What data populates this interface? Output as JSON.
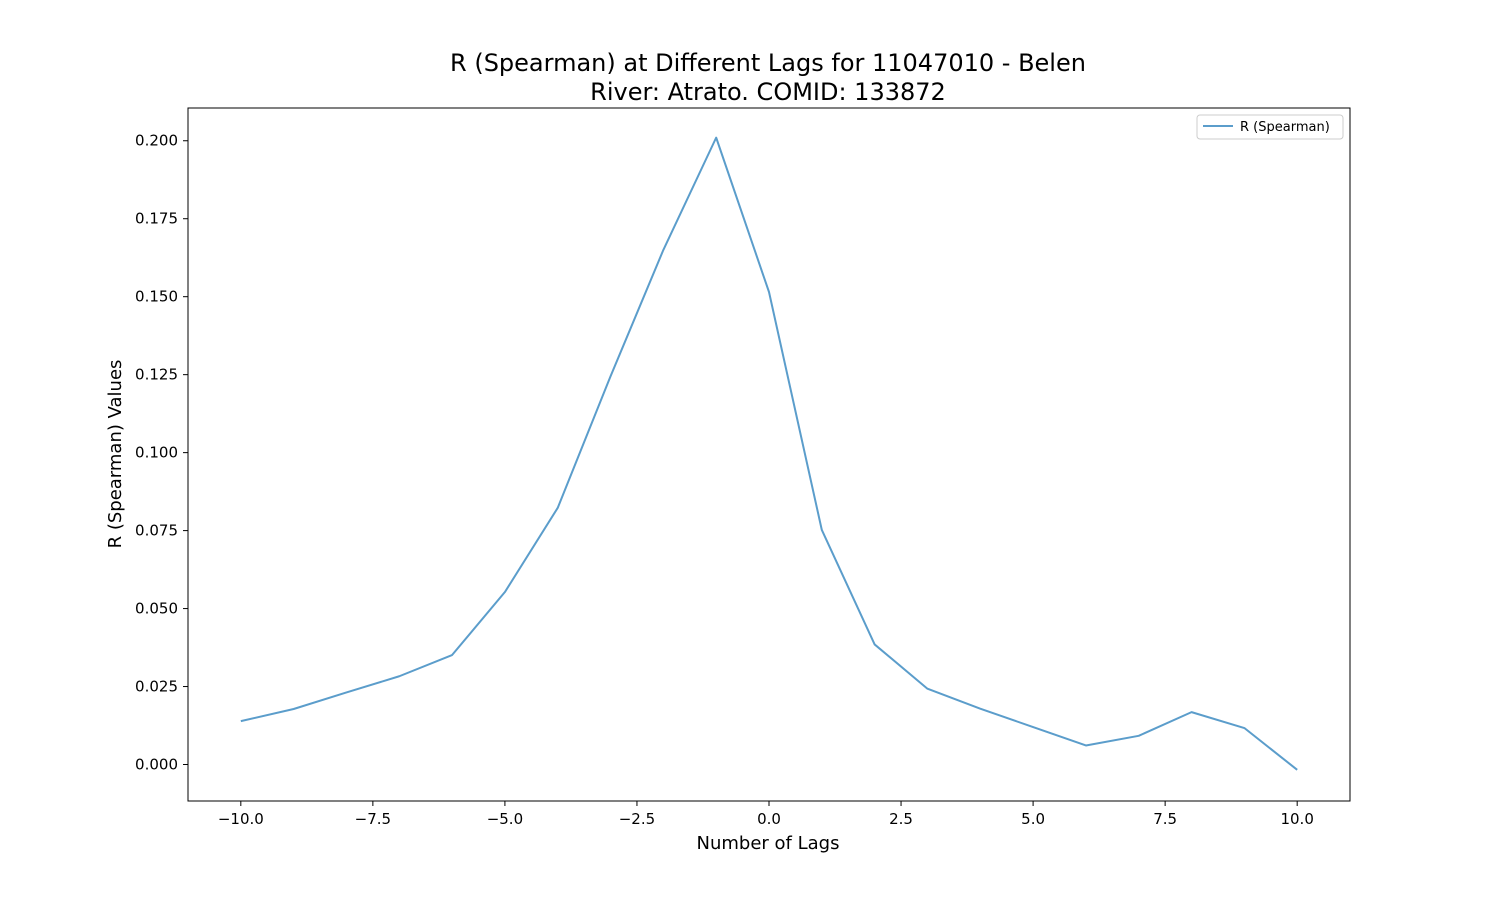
{
  "chart_data": {
    "type": "line",
    "title_line1": "R (Spearman) at Different Lags for 11047010 - Belen",
    "title_line2": "River: Atrato. COMID: 133872",
    "xlabel": "Number of Lags",
    "ylabel": "R (Spearman) Values",
    "xlim": [
      -11,
      11
    ],
    "ylim": [
      -0.0117,
      0.2105
    ],
    "xticks": [
      -10.0,
      -7.5,
      -5.0,
      -2.5,
      0.0,
      2.5,
      5.0,
      7.5,
      10.0
    ],
    "xtick_labels": [
      "−10.0",
      "−7.5",
      "−5.0",
      "−2.5",
      "0.0",
      "2.5",
      "5.0",
      "7.5",
      "10.0"
    ],
    "yticks": [
      0.0,
      0.025,
      0.05,
      0.075,
      0.1,
      0.125,
      0.15,
      0.175,
      0.2
    ],
    "ytick_labels": [
      "0.000",
      "0.025",
      "0.050",
      "0.075",
      "0.100",
      "0.125",
      "0.150",
      "0.175",
      "0.200"
    ],
    "grid": false,
    "legend_position": "top-right",
    "series": [
      {
        "name": "R (Spearman)",
        "color": "#5b9dcb",
        "x": [
          -10,
          -9,
          -8,
          -7,
          -6,
          -5,
          -4,
          -3,
          -2,
          -1,
          0,
          1,
          2,
          3,
          4,
          5,
          6,
          7,
          8,
          9,
          10
        ],
        "y": [
          0.0139,
          0.0178,
          0.0231,
          0.0283,
          0.0351,
          0.0553,
          0.0823,
          0.1245,
          0.165,
          0.201,
          0.1515,
          0.0752,
          0.0385,
          0.0243,
          0.0179,
          0.012,
          0.0061,
          0.0092,
          0.0168,
          0.0117,
          -0.0017
        ]
      }
    ]
  }
}
